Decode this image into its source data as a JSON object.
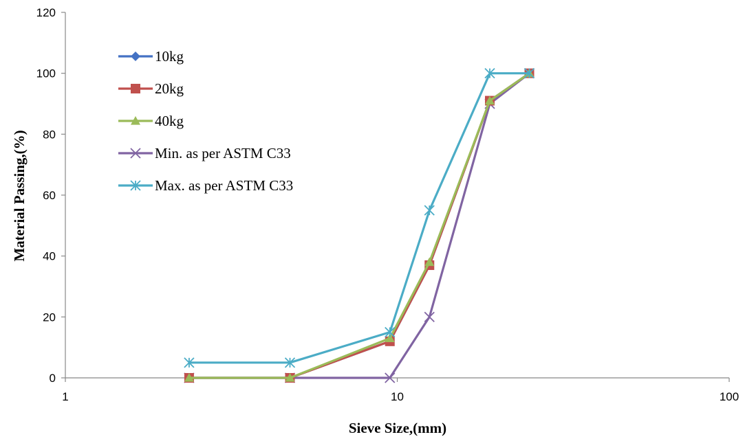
{
  "chart_data": {
    "type": "line",
    "xscale": "log",
    "xlabel": "Sieve Size,(mm)",
    "ylabel": "Material Passing,(%)",
    "xlim": [
      1,
      100
    ],
    "ylim": [
      0,
      120
    ],
    "xticks": [
      "1",
      "10",
      "100"
    ],
    "yticks": [
      "0",
      "20",
      "40",
      "60",
      "80",
      "100",
      "120"
    ],
    "x": [
      2.36,
      4.75,
      9.5,
      12.5,
      19,
      25
    ],
    "grid": false,
    "legend_position": "top-left",
    "series": [
      {
        "name": "10kg",
        "marker": "diamond",
        "color": "#4472C4",
        "values": [
          0,
          0,
          12,
          37,
          91,
          100
        ]
      },
      {
        "name": "20kg",
        "marker": "square",
        "color": "#C0504D",
        "values": [
          0,
          0,
          12,
          37,
          91,
          100
        ]
      },
      {
        "name": "40kg",
        "marker": "triangle",
        "color": "#9BBB59",
        "values": [
          0,
          0,
          13,
          38,
          91,
          100
        ]
      },
      {
        "name": "Min. as per ASTM C33",
        "marker": "x",
        "color": "#8064A2",
        "values": [
          0,
          0,
          0,
          20,
          90,
          100
        ]
      },
      {
        "name": "Max. as per ASTM C33",
        "marker": "star",
        "color": "#4BACC6",
        "values": [
          5,
          5,
          15,
          55,
          100,
          100
        ]
      }
    ]
  }
}
